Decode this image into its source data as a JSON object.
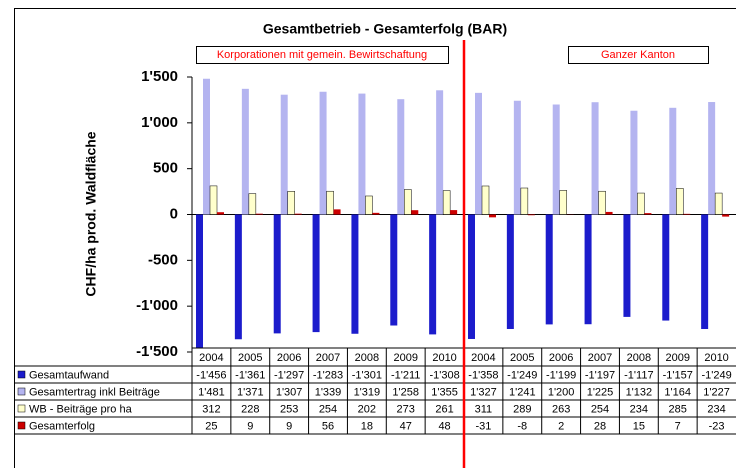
{
  "chart_data": {
    "type": "bar",
    "title": "Gesamtbetrieb - Gesamterfolg (BAR)",
    "y_label": "CHF/ha prod. Waldfläche",
    "annotations": [
      "Korporationen mit gemein. Bewirtschaftung",
      "Ganzer Kanton"
    ],
    "categories": [
      "2004",
      "2005",
      "2006",
      "2007",
      "2008",
      "2009",
      "2010",
      "2004",
      "2005",
      "2006",
      "2007",
      "2008",
      "2009",
      "2010"
    ],
    "series": [
      {
        "name": "Gesamtaufwand",
        "color": "#1c1ccc",
        "values": [
          -1456,
          -1361,
          -1297,
          -1283,
          -1301,
          -1211,
          -1308,
          -1358,
          -1249,
          -1199,
          -1197,
          -1117,
          -1157,
          -1249
        ],
        "value_labels": [
          "-1'456",
          "-1'361",
          "-1'297",
          "-1'283",
          "-1'301",
          "-1'211",
          "-1'308",
          "-1'358",
          "-1'249",
          "-1'199",
          "-1'197",
          "-1'117",
          "-1'157",
          "-1'249"
        ]
      },
      {
        "name": "Gesamtertrag inkl Beiträge",
        "color": "#b4b4f0",
        "values": [
          1481,
          1371,
          1307,
          1339,
          1319,
          1258,
          1355,
          1327,
          1241,
          1200,
          1225,
          1132,
          1164,
          1227
        ],
        "value_labels": [
          "1'481",
          "1'371",
          "1'307",
          "1'339",
          "1'319",
          "1'258",
          "1'355",
          "1'327",
          "1'241",
          "1'200",
          "1'225",
          "1'132",
          "1'164",
          "1'227"
        ]
      },
      {
        "name": "WB - Beiträge pro ha",
        "color": "#ffffcc",
        "values": [
          312,
          228,
          253,
          254,
          202,
          273,
          261,
          311,
          289,
          263,
          254,
          234,
          285,
          234
        ]
      },
      {
        "name": "Gesamterfolg",
        "color": "#cc0000",
        "values": [
          25,
          9,
          9,
          56,
          18,
          47,
          48,
          -31,
          -8,
          2,
          28,
          15,
          7,
          -23
        ]
      }
    ],
    "ylim": [
      -1500,
      1500
    ],
    "yticks": [
      {
        "value": -1500,
        "label": "-1'500"
      },
      {
        "value": -1000,
        "label": "-1'000"
      },
      -500,
      0,
      500,
      {
        "value": 1000,
        "label": "1'000"
      },
      {
        "value": 1500,
        "label": "1'500"
      }
    ],
    "grid": false,
    "divider_after": 6
  }
}
